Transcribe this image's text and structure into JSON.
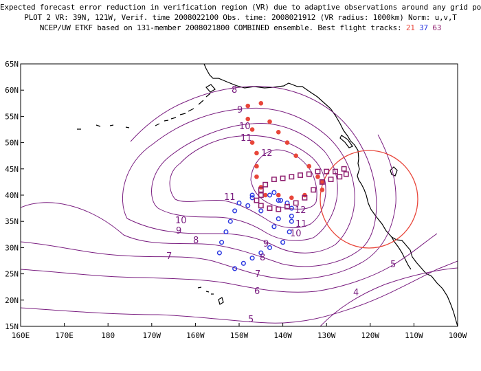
{
  "header": {
    "line1": "Expected forecast error reduction in verification region (VR) due to adaptive observations around any grid point.",
    "line2": "PLOT 2 VR: 39N, 121W, Verif. time 2008022100 Obs. time: 2008021912 (VR radius: 1000km) Norm: u,v,T",
    "line3_prefix": "NCEP/UW ETKF based on 131-member 2008021800 COMBINED ensemble.  Best flight tracks:",
    "track_red": "21",
    "track_blue": "37",
    "track_purple": "63"
  },
  "axes": {
    "lon_labels": [
      "160E",
      "170E",
      "180",
      "170W",
      "160W",
      "150W",
      "140W",
      "130W",
      "120W",
      "110W",
      "100W"
    ],
    "lat_labels": [
      "15N",
      "20N",
      "25N",
      "30N",
      "35N",
      "40N",
      "45N",
      "50N",
      "55N",
      "60N",
      "65N"
    ]
  },
  "contour_labels": [
    "4",
    "5",
    "5",
    "6",
    "7",
    "7",
    "8",
    "8",
    "8",
    "9",
    "9",
    "9",
    "10",
    "10",
    "10",
    "11",
    "11",
    "11",
    "12",
    "12"
  ],
  "colors": {
    "contour": "#7a1e80",
    "coast": "#000000",
    "track_21": "#e8463a",
    "track_37": "#2a37e0",
    "track_63": "#8e1e6e",
    "verification_circle": "#e8463a"
  },
  "verification_region": {
    "center_lat": 39,
    "center_lon": -121,
    "radius_km": 1000
  },
  "tracks": {
    "track_21_red_dots": [
      [
        57,
        -148
      ],
      [
        57.5,
        -145
      ],
      [
        54.5,
        -148
      ],
      [
        54,
        -143
      ],
      [
        52.5,
        -147
      ],
      [
        52,
        -141
      ],
      [
        50,
        -147
      ],
      [
        50,
        -139
      ],
      [
        48,
        -146
      ],
      [
        47.5,
        -137
      ],
      [
        45.5,
        -146
      ],
      [
        45.5,
        -134
      ],
      [
        43.5,
        -146
      ],
      [
        43.5,
        -132
      ],
      [
        41.5,
        -145
      ],
      [
        42.5,
        -131
      ],
      [
        40,
        -144
      ],
      [
        41,
        -131
      ],
      [
        40,
        -141
      ],
      [
        39.5,
        -138
      ],
      [
        40,
        -135
      ]
    ],
    "track_37_blue_circles": [
      [
        40,
        -147
      ],
      [
        40,
        -143
      ],
      [
        40.5,
        -142
      ],
      [
        39,
        -141
      ],
      [
        39,
        -140.5
      ],
      [
        38.5,
        -139
      ],
      [
        37.5,
        -138
      ],
      [
        36,
        -138
      ],
      [
        35,
        -138
      ],
      [
        33,
        -138.5
      ],
      [
        31,
        -140
      ],
      [
        39.5,
        -147
      ],
      [
        38.5,
        -150
      ],
      [
        37,
        -151
      ],
      [
        35,
        -152
      ],
      [
        33,
        -153
      ],
      [
        31,
        -154
      ],
      [
        29,
        -154.5
      ],
      [
        28,
        -147
      ],
      [
        27,
        -149
      ],
      [
        26,
        -151
      ],
      [
        38,
        -148
      ],
      [
        37,
        -145
      ],
      [
        35.5,
        -141
      ],
      [
        34,
        -142
      ],
      [
        30,
        -143
      ],
      [
        29,
        -145
      ]
    ],
    "track_63_purple_squares": [
      [
        45,
        -126
      ],
      [
        44.5,
        -128
      ],
      [
        44.5,
        -130
      ],
      [
        44.5,
        -132
      ],
      [
        44,
        -134
      ],
      [
        43.8,
        -136
      ],
      [
        43.5,
        -138
      ],
      [
        43.2,
        -140
      ],
      [
        43,
        -142
      ],
      [
        42,
        -144
      ],
      [
        41,
        -145
      ],
      [
        40,
        -145
      ],
      [
        39,
        -146
      ],
      [
        38,
        -145
      ],
      [
        37.5,
        -143
      ],
      [
        37.3,
        -141
      ],
      [
        37.8,
        -139
      ],
      [
        38.5,
        -137
      ],
      [
        39.5,
        -135
      ],
      [
        41,
        -133
      ],
      [
        42.5,
        -131
      ],
      [
        43,
        -129
      ],
      [
        43.5,
        -127
      ],
      [
        44,
        -125.5
      ]
    ]
  }
}
